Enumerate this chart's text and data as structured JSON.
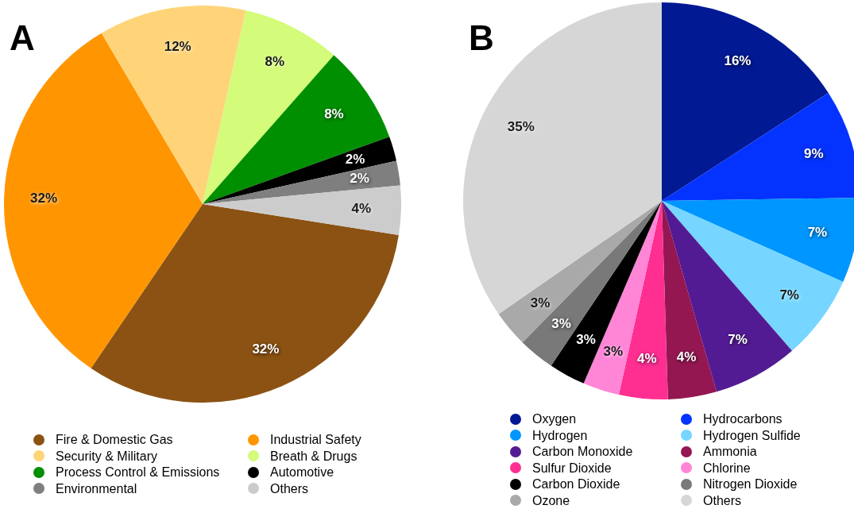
{
  "chart_data": [
    {
      "type": "pie",
      "title": "A",
      "categories": [
        "Fire & Domestic Gas",
        "Industrial Safety",
        "Security & Military",
        "Breath & Drugs",
        "Process Control & Emissions",
        "Automotive",
        "Environmental",
        "Others"
      ],
      "values": [
        32,
        32,
        12,
        8,
        8,
        2,
        2,
        4
      ],
      "value_labels": [
        "32%",
        "32%",
        "12%",
        "8%",
        "8%",
        "2%",
        "2%",
        "4%"
      ],
      "colors": [
        "#8b5213",
        "#ff9500",
        "#ffd479",
        "#d4fb79",
        "#008f00",
        "#000000",
        "#7f7f7f",
        "#cccccc"
      ],
      "legend": "bottom"
    },
    {
      "type": "pie",
      "title": "B",
      "categories": [
        "Oxygen",
        "Hydrocarbons",
        "Hydrogen",
        "Hydrogen Sulfide",
        "Carbon Monoxide",
        "Ammonia",
        "Sulfur Dioxide",
        "Chlorine",
        "Carbon Dioxide",
        "Nitrogen Dioxide",
        "Ozone",
        "Others"
      ],
      "values": [
        16,
        9,
        7,
        7,
        7,
        4,
        4,
        3,
        3,
        3,
        3,
        35
      ],
      "value_labels": [
        "16%",
        "9%",
        "7%",
        "7%",
        "7%",
        "4%",
        "4%",
        "3%",
        "3%",
        "3%",
        "3%",
        "35%"
      ],
      "colors": [
        "#011993",
        "#0433ff",
        "#0096ff",
        "#76d6ff",
        "#531b93",
        "#941751",
        "#ff2f92",
        "#ff85d6",
        "#000000",
        "#797979",
        "#a9a9a9",
        "#d6d6d6"
      ],
      "legend": "bottom"
    }
  ]
}
